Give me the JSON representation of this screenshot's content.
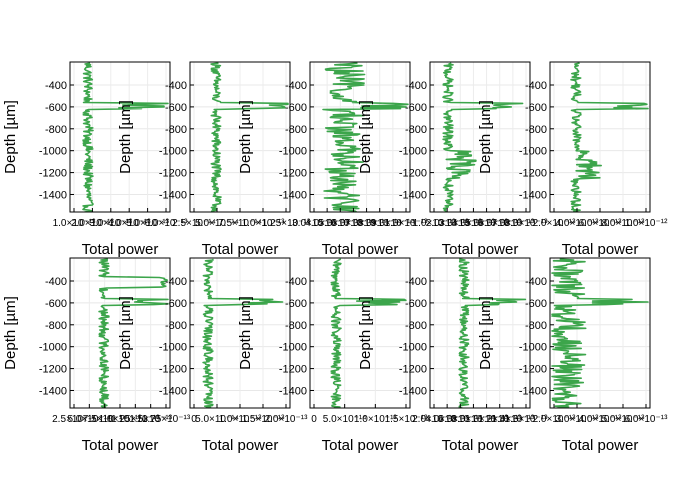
{
  "chart_data": [
    {
      "type": "line",
      "xlabel": "Total power",
      "ylabel": "Depth [µm]",
      "ylim": [
        -1560,
        -190
      ],
      "yticks": [
        "-400",
        "-600",
        "-800",
        "-1000",
        "-1200",
        "-1400"
      ],
      "xticks": [
        "1.0×10⁻¹³",
        "2.0×10⁻¹³",
        "3.0×10⁻¹³",
        "4.0×10⁻¹³",
        "5.0×10⁻¹³",
        "6.0×10⁻¹³"
      ],
      "xlim": [
        0.9,
        6.4
      ],
      "grid": true,
      "color": "#3ca54b"
    },
    {
      "type": "line",
      "xlabel": "Total power",
      "ylabel": "Depth [µm]",
      "ylim": [
        -1560,
        -190
      ],
      "yticks": [
        "-400",
        "-600",
        "-800",
        "-1000",
        "-1200",
        "-1400"
      ],
      "xticks": [
        "2.5×10⁻¹⁴",
        "5.0×10⁻¹⁴",
        "7.5×10⁻¹⁴",
        "1.0×10⁻¹³",
        "1.25×10⁻¹³"
      ],
      "xlim": [
        1.5,
        13.5
      ],
      "grid": true,
      "color": "#3ca54b"
    },
    {
      "type": "line",
      "xlabel": "Total power",
      "ylabel": "Depth [µm]",
      "ylim": [
        -1560,
        -190
      ],
      "yticks": [
        "-400",
        "-600",
        "-800",
        "-1000",
        "-1200",
        "-1400"
      ],
      "xticks": [
        "3.0×10⁻¹⁴",
        "4.0×10⁻¹⁴",
        "5.0×10⁻¹⁴",
        "6.0×10⁻¹⁴",
        "7.0×10⁻¹⁴",
        "8.0×10⁻¹⁴",
        "9.0×10⁻¹⁴",
        "1.0×10⁻¹³"
      ],
      "xlim": [
        2.8,
        10.6
      ],
      "grid": true,
      "color": "#3ca54b"
    },
    {
      "type": "line",
      "xlabel": "Total power",
      "ylabel": "Depth [µm]",
      "ylim": [
        -1560,
        -190
      ],
      "yticks": [
        "-400",
        "-600",
        "-800",
        "-1000",
        "-1200",
        "-1400"
      ],
      "xticks": [
        "1.0×10⁻¹³",
        "2.0×10⁻¹³",
        "3.0×10⁻¹³",
        "4.0×10⁻¹³",
        "5.0×10⁻¹³",
        "6.0×10⁻¹³",
        "7.0×10⁻¹³",
        "8.0×10⁻¹³"
      ],
      "xlim": [
        0.9,
        8.9
      ],
      "grid": true,
      "color": "#3ca54b"
    },
    {
      "type": "line",
      "xlabel": "Total power",
      "ylabel": "Depth [µm]",
      "ylim": [
        -1560,
        -190
      ],
      "yticks": [
        "-400",
        "-600",
        "-800",
        "-1000",
        "-1200",
        "-1400"
      ],
      "xticks": [
        "2.0×10⁻¹³",
        "4.0×10⁻¹³",
        "6.0×10⁻¹³",
        "8.0×10⁻¹³",
        "1.0×10⁻¹²"
      ],
      "xlim": [
        1.5,
        12.0
      ],
      "grid": true,
      "color": "#3ca54b"
    },
    {
      "type": "line",
      "xlabel": "Total power",
      "ylabel": "Depth [µm]",
      "ylim": [
        -1560,
        -190
      ],
      "yticks": [
        "-400",
        "-600",
        "-800",
        "-1000",
        "-1200",
        "-1400"
      ],
      "xticks": [
        "2.5×10⁻¹⁴",
        "5.0×10⁻¹⁴",
        "7.5×10⁻¹⁴",
        "1.0×10⁻¹³",
        "1.25×10⁻¹³",
        "1.5×10⁻¹³",
        "1.75×10⁻¹³"
      ],
      "xlim": [
        2.2,
        19.0
      ],
      "grid": true,
      "color": "#3ca54b"
    },
    {
      "type": "line",
      "xlabel": "Total power",
      "ylabel": "Depth [µm]",
      "ylim": [
        -1560,
        -190
      ],
      "yticks": [
        "-400",
        "-600",
        "-800",
        "-1000",
        "-1200",
        "-1400"
      ],
      "xticks": [
        "0",
        "5.0×10⁻¹⁴",
        "1.0×10⁻¹³",
        "1.5×10⁻¹³",
        "2.0×10⁻¹³"
      ],
      "xlim": [
        -0.2,
        2.2
      ],
      "grid": true,
      "color": "#3ca54b"
    },
    {
      "type": "line",
      "xlabel": "Total power",
      "ylabel": "Depth [µm]",
      "ylim": [
        -1560,
        -190
      ],
      "yticks": [
        "-400",
        "-600",
        "-800",
        "-1000",
        "-1200",
        "-1400"
      ],
      "xticks": [
        "0",
        "5.0×10⁻¹⁴",
        "1.0×10⁻¹³",
        "1.5×10⁻¹³"
      ],
      "xlim": [
        -0.1,
        1.85
      ],
      "grid": true,
      "color": "#3ca54b"
    },
    {
      "type": "line",
      "xlabel": "Total power",
      "ylabel": "Depth [µm]",
      "ylim": [
        -1560,
        -190
      ],
      "yticks": [
        "-400",
        "-600",
        "-800",
        "-1000",
        "-1200",
        "-1400"
      ],
      "xticks": [
        "2.0×10⁻¹⁴",
        "4.0×10⁻¹⁴",
        "6.0×10⁻¹⁴",
        "8.0×10⁻¹⁴",
        "1.0×10⁻¹³",
        "1.2×10⁻¹³",
        "1.4×10⁻¹³",
        "1.6×10⁻¹³"
      ],
      "xlim": [
        1.5,
        17.5
      ],
      "grid": true,
      "color": "#3ca54b"
    },
    {
      "type": "line",
      "xlabel": "Total power",
      "ylabel": "Depth [µm]",
      "ylim": [
        -1560,
        -190
      ],
      "yticks": [
        "-400",
        "-600",
        "-800",
        "-1000",
        "-1200",
        "-1400"
      ],
      "xticks": [
        "2.0×10⁻¹³",
        "3.0×10⁻¹³",
        "4.0×10⁻¹³",
        "5.0×10⁻¹³",
        "6.0×10⁻¹³"
      ],
      "xlim": [
        1.5,
        6.8
      ],
      "grid": true,
      "color": "#3ca54b"
    }
  ]
}
